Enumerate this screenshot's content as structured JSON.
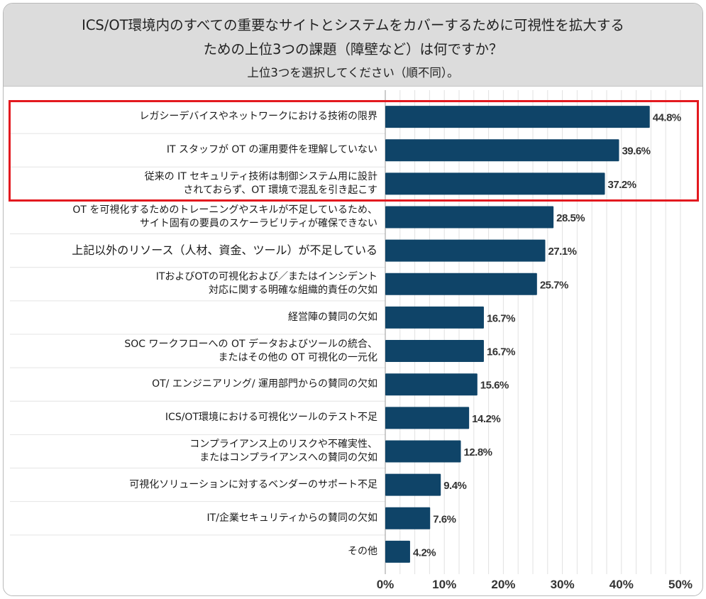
{
  "header": {
    "title_line1": "ICS/OT環境内のすべての重要なサイトとシステムをカバーするために可視性を拡大する",
    "title_line2": "ための上位3つの課題（障壁など）は何ですか？",
    "subtitle": "上位3つを選択してください（順不同）。"
  },
  "chart_data": {
    "type": "bar",
    "orientation": "horizontal",
    "categories": [
      "レガシーデバイスやネットワークにおける技術の限界",
      "IT スタッフが OT の運用要件を理解していない",
      "従来の IT セキュリティ技術は制御システム用に設計\nされておらず、OT 環境で混乱を引き起こす",
      "OT を可視化するためのトレーニングやスキルが不足しているため、\nサイト固有の要員のスケーラビリティが確保できない",
      "上記以外のリソース（人材、資金、ツール）が不足している",
      "ITおよびOTの可視化および／またはインシデント\n対応に関する明確な組織的責任の欠如",
      "経営陣の賛同の欠如",
      "SOC ワークフローへの OT データおよびツールの統合、\nまたはその他の OT 可視化の一元化",
      "OT/ エンジニアリング/ 運用部門からの賛同の欠如",
      "ICS/OT環境における可視化ツールのテスト不足",
      "コンプライアンス上のリスクや不確実性、\nまたはコンプライアンスへの賛同の欠如",
      "可視化ソリューションに対するベンダーのサポート不足",
      "IT/企業セキュリティからの賛同の欠如",
      "その他"
    ],
    "values": [
      44.8,
      39.6,
      37.2,
      28.5,
      27.1,
      25.7,
      16.7,
      16.7,
      15.6,
      14.2,
      12.8,
      9.4,
      7.6,
      4.2
    ],
    "value_labels": [
      "44.8%",
      "39.6%",
      "37.2%",
      "28.5%",
      "27.1%",
      "25.7%",
      "16.7%",
      "16.7%",
      "15.6%",
      "14.2%",
      "12.8%",
      "9.4%",
      "7.6%",
      "4.2%"
    ],
    "x_ticks": [
      "0%",
      "10%",
      "20%",
      "30%",
      "40%",
      "50%"
    ],
    "xlim": [
      0,
      50
    ],
    "grid": true,
    "highlighted_categories": [
      0,
      1,
      2
    ],
    "bar_color": "#0f4468",
    "highlight_color": "#e3191f"
  }
}
